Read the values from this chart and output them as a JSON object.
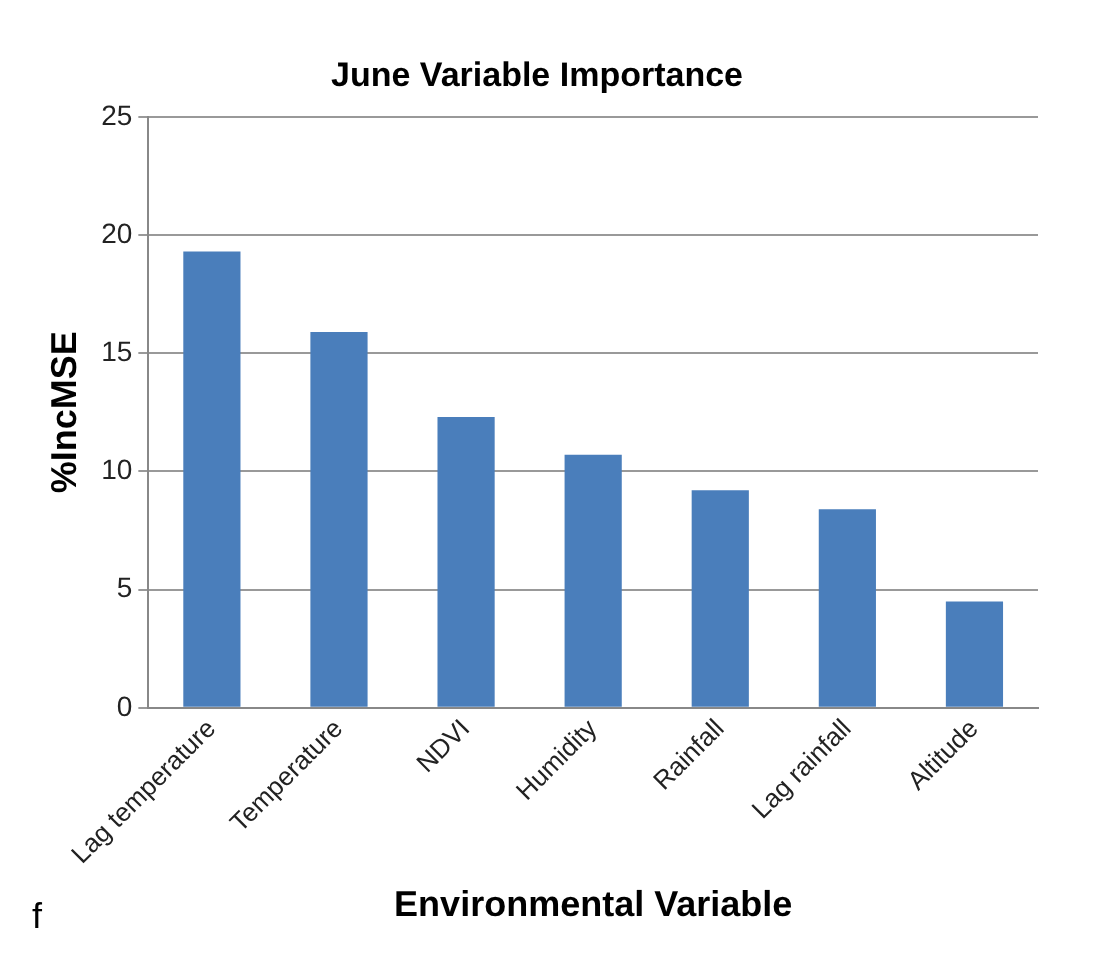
{
  "chart_data": {
    "type": "bar",
    "title": "June Variable Importance",
    "xlabel": "Environmental Variable",
    "ylabel": "%IncMSE",
    "categories": [
      "Lag temperature",
      "Temperature",
      "NDVI",
      "Humidity",
      "Rainfall",
      "Lag rainfall",
      "Altitude"
    ],
    "values": [
      19.3,
      15.9,
      12.3,
      10.7,
      9.2,
      8.4,
      4.5
    ],
    "color": "#4a7ebb",
    "ylim": [
      0,
      25
    ],
    "yticks": [
      0,
      5,
      10,
      15,
      20,
      25
    ],
    "grid": "y",
    "legend": false,
    "annotations": [
      "f"
    ]
  }
}
